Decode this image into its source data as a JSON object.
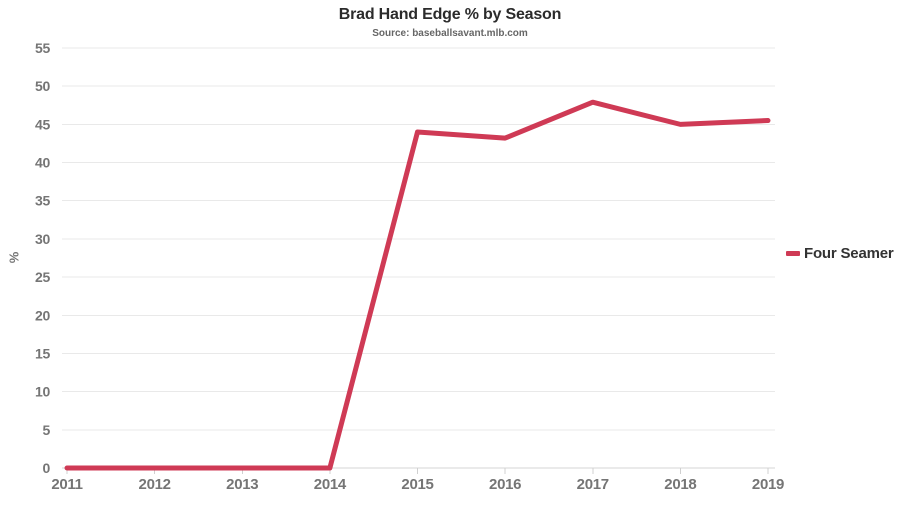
{
  "title": "Brad Hand Edge % by Season",
  "subtitle": "Source: baseballsavant.mlb.com",
  "legend": {
    "items": [
      {
        "label": "Four Seamer",
        "color": "#cf3a55"
      }
    ]
  },
  "colors": {
    "background": "#ffffff",
    "grid": "#e9e9e9",
    "axis_line": "#d6d6d6",
    "tick_mark": "#d0d0d0",
    "tick_label": "#757575",
    "title_text": "#2b2b2b",
    "subtitle_text": "#666666",
    "legend_text": "#333333"
  },
  "chart_data": {
    "type": "line",
    "x": [
      "2011",
      "2012",
      "2013",
      "2014",
      "2015",
      "2016",
      "2017",
      "2018",
      "2019"
    ],
    "series": [
      {
        "name": "Four Seamer",
        "color": "#cf3a55",
        "values": [
          0,
          0,
          0,
          0,
          44.0,
          43.2,
          47.9,
          45.0,
          45.5
        ]
      }
    ],
    "title": "Brad Hand Edge % by Season",
    "subtitle": "Source: baseballsavant.mlb.com",
    "xlabel": "",
    "ylabel": "%",
    "ylim": [
      0,
      55
    ],
    "y_ticks": [
      0,
      5,
      10,
      15,
      20,
      25,
      30,
      35,
      40,
      45,
      50,
      55
    ],
    "grid": "horizontal",
    "legend_position": "right"
  }
}
